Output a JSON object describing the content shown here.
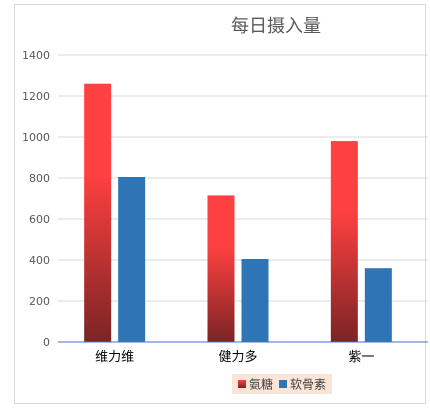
{
  "chart_data": {
    "type": "bar",
    "title": "每日摄入量",
    "xlabel": "",
    "ylabel": "",
    "categories": [
      "维力维",
      "健力多",
      "紫一"
    ],
    "series": [
      {
        "name": "氨糖",
        "values": [
          1260,
          715,
          980
        ],
        "color": "#ff4040",
        "color_dark": "#7b2424"
      },
      {
        "name": "软骨素",
        "values": [
          805,
          405,
          360
        ],
        "color": "#2e75b6"
      }
    ],
    "ylim": [
      0,
      1400
    ],
    "yticks": [
      0,
      200,
      400,
      600,
      800,
      1000,
      1200,
      1400
    ],
    "grid": true,
    "legend_position": "bottom"
  }
}
